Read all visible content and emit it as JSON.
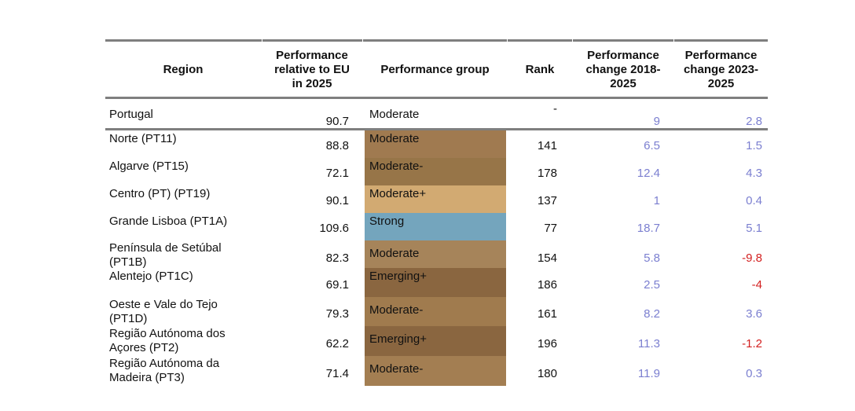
{
  "table": {
    "headers": {
      "region": "Region",
      "performance": "Performance\nrelative to EU\nin 2025",
      "group": "Performance group",
      "rank": "Rank",
      "change_2018": "Performance\nchange 2018-\n2025",
      "change_2023": "Performance\nchange 2023-\n2025"
    },
    "national": {
      "region": "Portugal",
      "performance": "90.7",
      "group": "Moderate",
      "rank": "-",
      "change_2018": "9",
      "change_2023": "2.8"
    },
    "rows": [
      {
        "region": "Norte (PT11)",
        "performance": "88.8",
        "group": "Moderate",
        "rank": "141",
        "change_2018": "6.5",
        "change_2023": "1.5",
        "group_color": "#a07a50"
      },
      {
        "region": "Algarve (PT15)",
        "performance": "72.1",
        "group": "Moderate-",
        "rank": "178",
        "change_2018": "12.4",
        "change_2023": "4.3",
        "group_color": "#977548"
      },
      {
        "region": "Centro (PT) (PT19)",
        "performance": "90.1",
        "group": "Moderate+",
        "rank": "137",
        "change_2018": "1",
        "change_2023": "0.4",
        "group_color": "#d2aa72"
      },
      {
        "region": "Grande Lisboa (PT1A)",
        "performance": "109.6",
        "group": "Strong",
        "rank": "77",
        "change_2018": "18.7",
        "change_2023": "5.1",
        "group_color": "#74a5bd"
      },
      {
        "region": "Península de Setúbal\n(PT1B)",
        "performance": "82.3",
        "group": "Moderate",
        "rank": "154",
        "change_2018": "5.8",
        "change_2023": "-9.8",
        "group_color": "#a6845a"
      },
      {
        "region": "Alentejo (PT1C)",
        "performance": "69.1",
        "group": "Emerging+",
        "rank": "186",
        "change_2018": "2.5",
        "change_2023": "-4",
        "group_color": "#8a6640"
      },
      {
        "region": "Oeste e Vale do Tejo\n(PT1D)",
        "performance": "79.3",
        "group": "Moderate-",
        "rank": "161",
        "change_2018": "8.2",
        "change_2023": "3.6",
        "group_color": "#a07b4e"
      },
      {
        "region": "Região Autónoma dos\nAçores (PT2)",
        "performance": "62.2",
        "group": "Emerging+",
        "rank": "196",
        "change_2018": "11.3",
        "change_2023": "-1.2",
        "group_color": "#8a6640"
      },
      {
        "region": "Região Autónoma da\nMadeira (PT3)",
        "performance": "71.4",
        "group": "Moderate-",
        "rank": "180",
        "change_2018": "11.9",
        "change_2023": "0.3",
        "group_color": "#a37e52"
      }
    ]
  }
}
